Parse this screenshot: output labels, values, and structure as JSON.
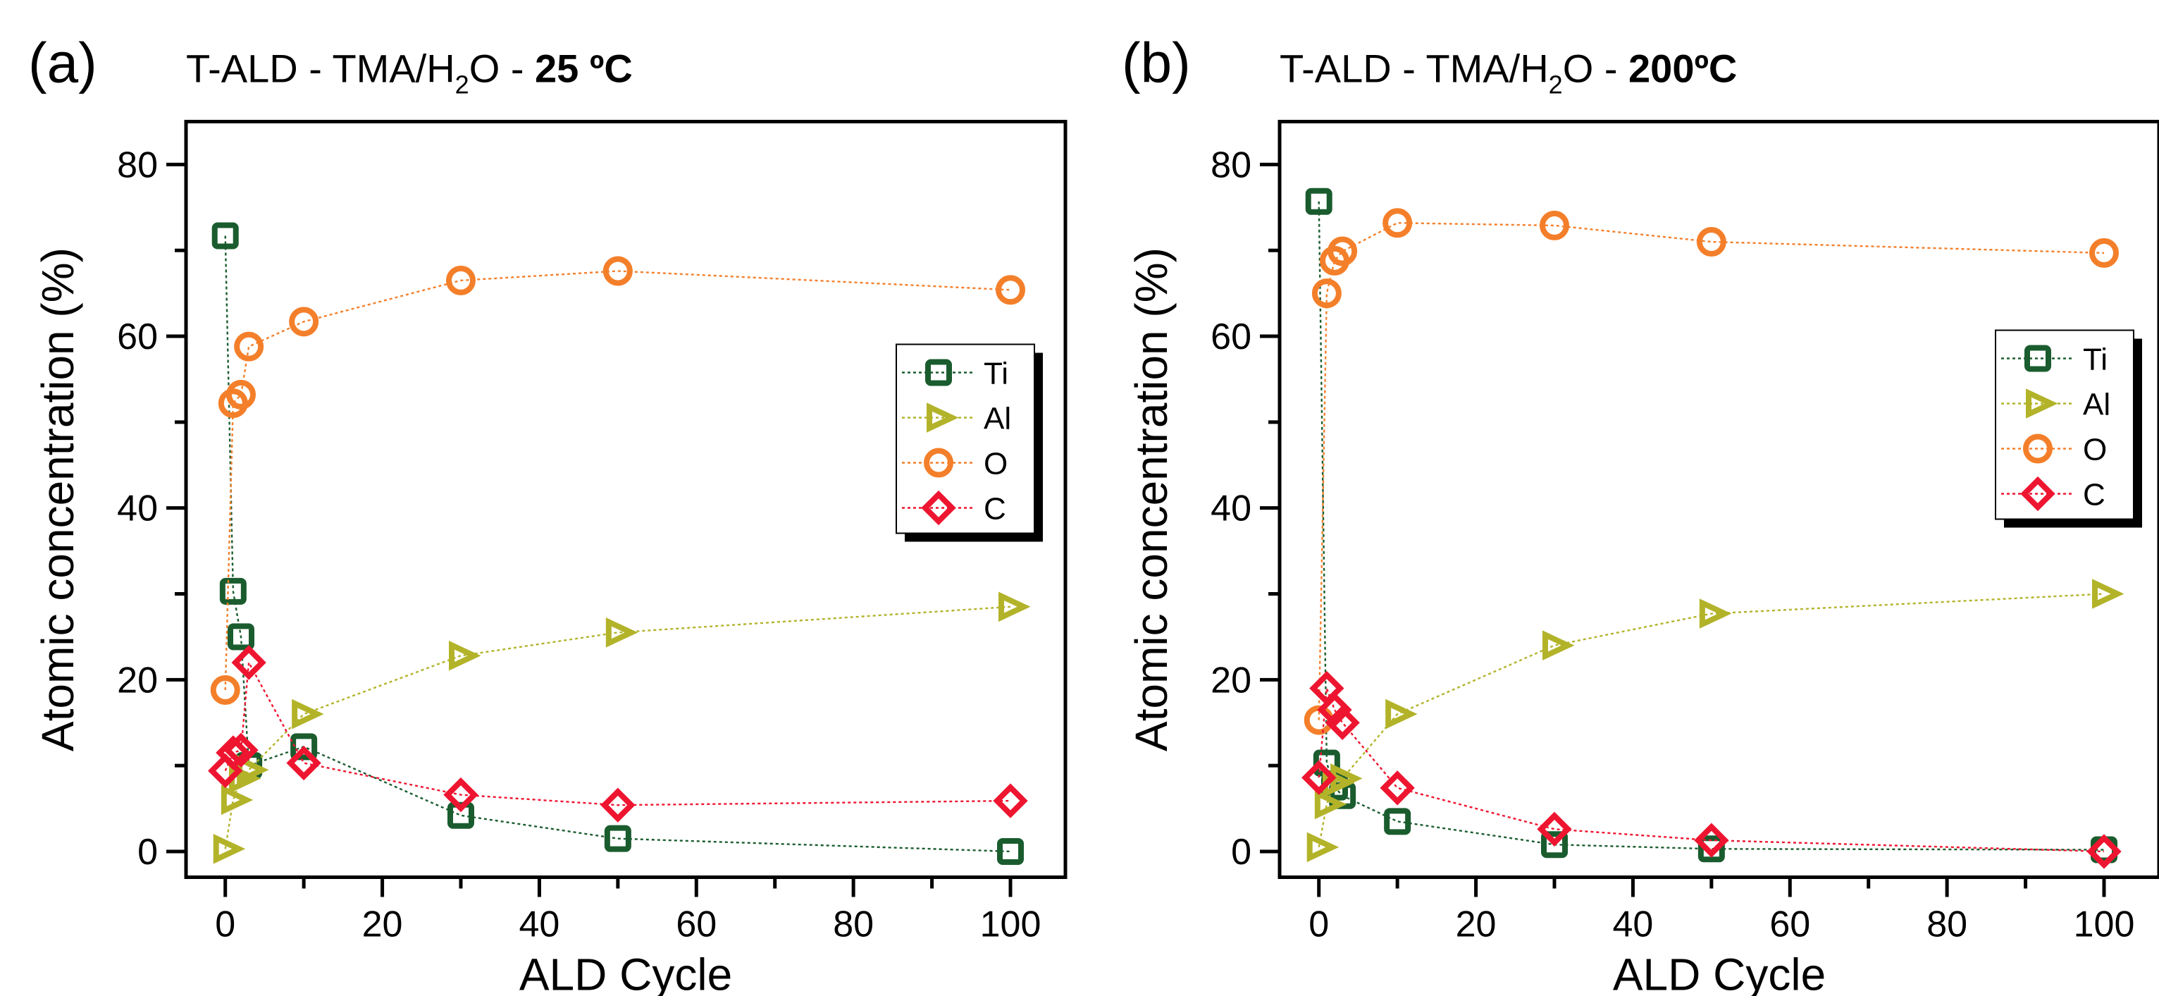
{
  "chart_data": [
    {
      "type": "line",
      "panel_label": "(a)",
      "title": {
        "prefix": "T-ALD - TMA/H",
        "sub": "2",
        "suffix": "O - ",
        "bold": "25 ºC"
      },
      "xlabel": "ALD Cycle",
      "ylabel": "Atomic concentration (%)",
      "xlim": [
        -5,
        107
      ],
      "ylim": [
        -3,
        85
      ],
      "xticks": [
        "0",
        "20",
        "40",
        "60",
        "80",
        "100"
      ],
      "yticks": [
        "0",
        "20",
        "40",
        "60",
        "80"
      ],
      "legend_placement": "right",
      "x": [
        0,
        1,
        2,
        3,
        10,
        30,
        50,
        100
      ],
      "series": [
        {
          "name": "Ti",
          "marker": "square",
          "color": "#1a5c2e",
          "values": [
            71.7,
            30.3,
            25.0,
            10.0,
            12.2,
            4.2,
            1.5,
            0.0
          ]
        },
        {
          "name": "Al",
          "marker": "triangle-right",
          "color": "#b3b32a",
          "values": [
            0.3,
            6.0,
            8.5,
            9.5,
            16.0,
            22.8,
            25.5,
            28.5
          ]
        },
        {
          "name": "O",
          "marker": "circle",
          "color": "#f47f2a",
          "values": [
            18.8,
            52.2,
            53.2,
            58.8,
            61.7,
            66.5,
            67.6,
            65.4
          ]
        },
        {
          "name": "C",
          "marker": "diamond",
          "color": "#ee1530",
          "values": [
            9.4,
            11.5,
            11.8,
            22.0,
            10.3,
            6.6,
            5.4,
            5.9
          ]
        }
      ]
    },
    {
      "type": "line",
      "panel_label": "(b)",
      "title": {
        "prefix": "T-ALD - TMA/H",
        "sub": "2",
        "suffix": "O - ",
        "bold": "200ºC"
      },
      "xlabel": "ALD Cycle",
      "ylabel": "Atomic concentration (%)",
      "xlim": [
        -5,
        107
      ],
      "ylim": [
        -3,
        85
      ],
      "xticks": [
        "0",
        "20",
        "40",
        "60",
        "80",
        "100"
      ],
      "yticks": [
        "0",
        "20",
        "40",
        "60",
        "80"
      ],
      "legend_placement": "right",
      "x": [
        0,
        1,
        2,
        3,
        10,
        30,
        50,
        100
      ],
      "series": [
        {
          "name": "Ti",
          "marker": "square",
          "color": "#1a5c2e",
          "values": [
            75.7,
            10.3,
            7.5,
            6.5,
            3.5,
            0.8,
            0.3,
            0.2
          ]
        },
        {
          "name": "Al",
          "marker": "triangle-right",
          "color": "#b3b32a",
          "values": [
            0.5,
            5.5,
            8.0,
            8.5,
            16.0,
            24.0,
            27.7,
            30.0
          ]
        },
        {
          "name": "O",
          "marker": "circle",
          "color": "#f47f2a",
          "values": [
            15.3,
            65.0,
            68.8,
            69.9,
            73.2,
            72.9,
            71.0,
            69.7
          ]
        },
        {
          "name": "C",
          "marker": "diamond",
          "color": "#ee1530",
          "values": [
            8.6,
            19.0,
            16.5,
            15.0,
            7.4,
            2.6,
            1.3,
            0.0
          ]
        }
      ]
    }
  ]
}
